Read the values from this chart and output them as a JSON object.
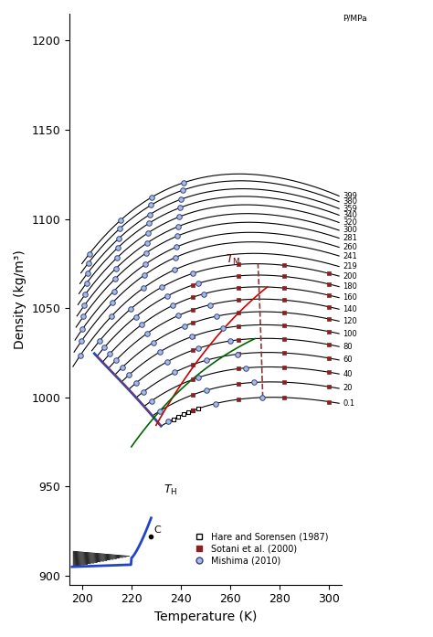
{
  "xlabel": "Temperature (K)",
  "ylabel": "Density (kg/m³)",
  "xlim": [
    195,
    305
  ],
  "ylim": [
    895,
    1215
  ],
  "xticks": [
    200,
    220,
    240,
    260,
    280,
    300
  ],
  "yticks": [
    900,
    950,
    1000,
    1050,
    1100,
    1150,
    1200
  ],
  "pressures": [
    0.1,
    20,
    40,
    60,
    80,
    100,
    120,
    140,
    160,
    180,
    200,
    219,
    241,
    260,
    281,
    300,
    320,
    340,
    359,
    380,
    399
  ],
  "pressure_labels": [
    "0.1",
    "20",
    "40",
    "60",
    "80",
    "100",
    "120",
    "140",
    "160",
    "180",
    "200",
    "219",
    "241",
    "260",
    "281",
    "300",
    "320",
    "340",
    "359",
    "380",
    "399"
  ],
  "line_color": "#000000",
  "blue_color": "#2244cc",
  "figsize": [
    4.74,
    6.97
  ],
  "dpi": 100
}
